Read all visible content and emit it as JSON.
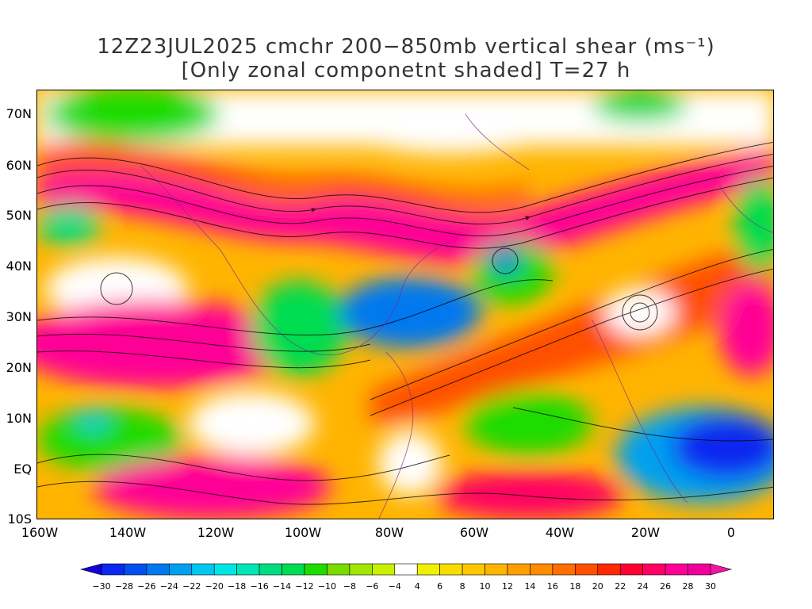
{
  "title": {
    "line1": "12Z23JUL2025 cmchr 200−850mb vertical shear (ms⁻¹)",
    "line2": "[Only zonal componetnt shaded] T=27 h"
  },
  "map": {
    "lat_labels": [
      "70N",
      "60N",
      "50N",
      "40N",
      "30N",
      "20N",
      "10N",
      "EQ",
      "10S"
    ],
    "lon_labels": [
      "160W",
      "140W",
      "120W",
      "100W",
      "80W",
      "60W",
      "40W",
      "20W",
      "0"
    ]
  },
  "colorbar": {
    "labels": [
      "−30",
      "−28",
      "−26",
      "−24",
      "−22",
      "−20",
      "−18",
      "−16",
      "−14",
      "−12",
      "−10",
      "−8",
      "−6",
      "−4",
      "4",
      "6",
      "8",
      "10",
      "12",
      "14",
      "16",
      "18",
      "20",
      "22",
      "24",
      "26",
      "28",
      "30"
    ],
    "colors": [
      "#1400d2",
      "#0a28f0",
      "#0050f0",
      "#0078f0",
      "#00a0f0",
      "#00c8f0",
      "#00e6e6",
      "#00e6b4",
      "#00dc82",
      "#00dc50",
      "#1edc00",
      "#78dc00",
      "#a0e600",
      "#c8f000",
      "#ffffff",
      "#f0f000",
      "#fadc00",
      "#ffc800",
      "#ffb400",
      "#ffa000",
      "#ff8c00",
      "#ff6e00",
      "#ff5000",
      "#ff2800",
      "#ff0032",
      "#ff0064",
      "#ff0096",
      "#f0009b",
      "#f014a0"
    ]
  }
}
